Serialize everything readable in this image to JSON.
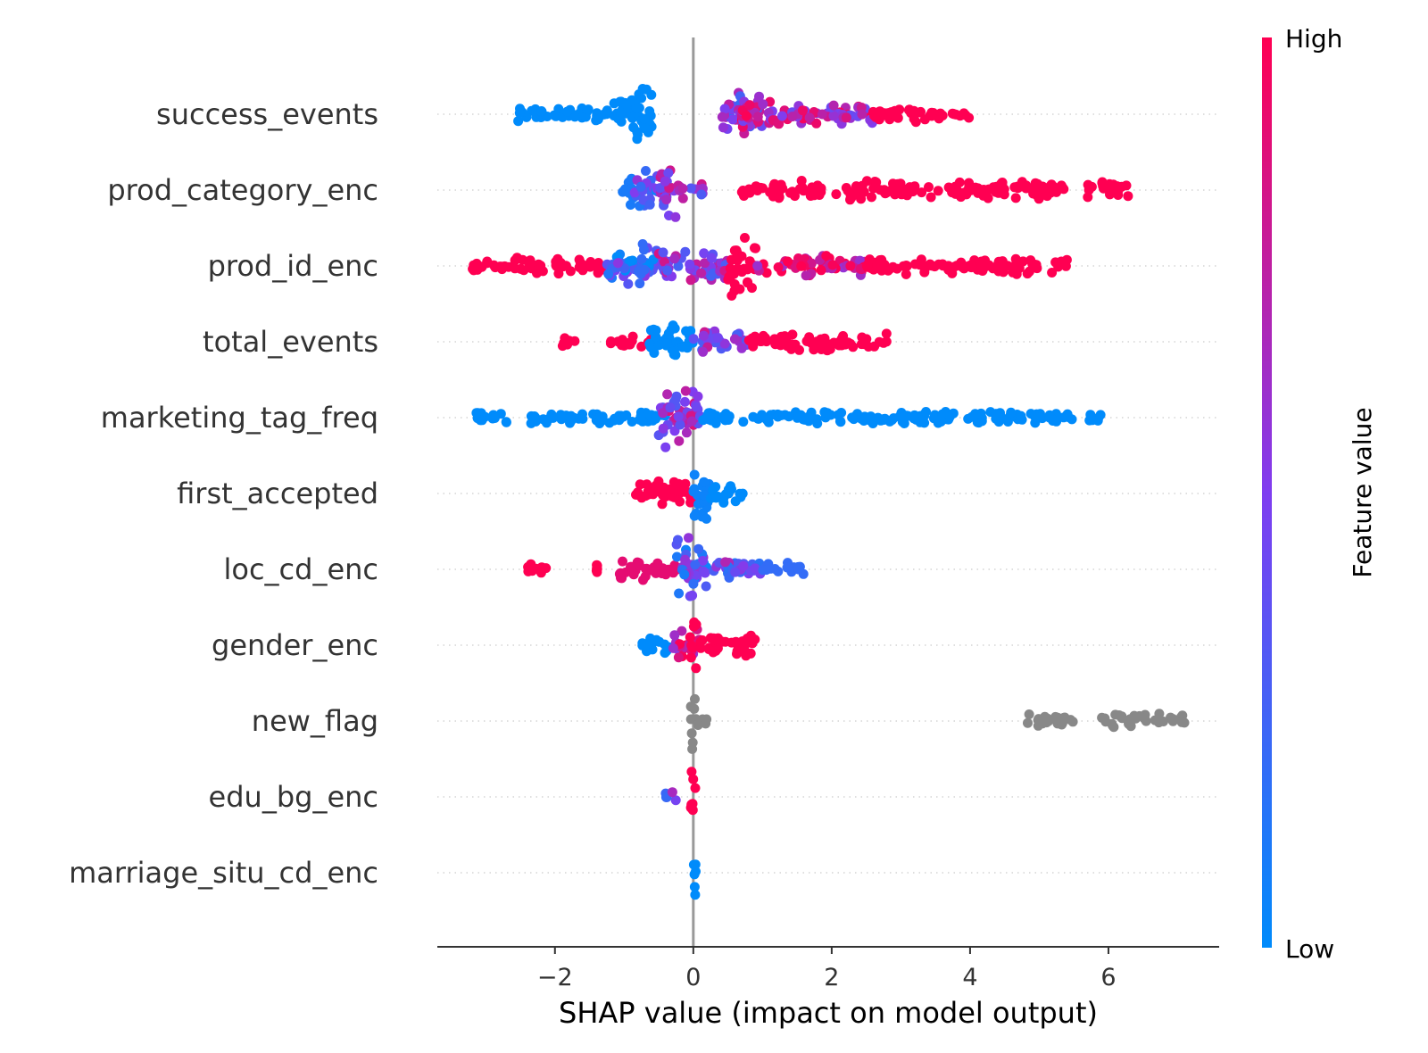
{
  "chart_data": {
    "type": "scatter",
    "subtype": "shap-beeswarm",
    "xlabel": "SHAP value (impact on model output)",
    "xlim": [
      -3.7,
      7.6
    ],
    "xticks": [
      -2,
      0,
      2,
      4,
      6
    ],
    "xtick_labels": [
      "−2",
      "0",
      "2",
      "4",
      "6"
    ],
    "zero_line": 0,
    "colorbar": {
      "title": "Feature value",
      "high_label": "High",
      "low_label": "Low",
      "high_color": "#ff0052",
      "mid_color": "#7f3df0",
      "low_color": "#008bfb"
    },
    "missing_color": "#888888",
    "features": [
      {
        "name": "success_events",
        "groups": [
          {
            "x": [
              -2.6,
              -2.2
            ],
            "color": 0.0,
            "w": 0.25
          },
          {
            "x": [
              -2.2,
              -1.2
            ],
            "color": 0.0,
            "w": 0.18
          },
          {
            "x": [
              -1.2,
              -0.75
            ],
            "color": 0.0,
            "w": 0.45
          },
          {
            "x": [
              -0.9,
              -0.6
            ],
            "color": 0.0,
            "w": 1.0
          },
          {
            "x": [
              0.4,
              1.0
            ],
            "color": 0.5,
            "w": 0.7
          },
          {
            "x": [
              0.7,
              1.2
            ],
            "color": 0.75,
            "w": 0.55
          },
          {
            "x": [
              1.2,
              2.6
            ],
            "color": 0.7,
            "w": 0.3
          },
          {
            "x": [
              2.6,
              3.4
            ],
            "color": 1.0,
            "w": 0.2
          },
          {
            "x": [
              3.4,
              4.0
            ],
            "color": 1.0,
            "w": 0.05
          }
        ]
      },
      {
        "name": "prod_category_enc",
        "groups": [
          {
            "x": [
              -1.05,
              -0.85
            ],
            "color": 0.1,
            "w": 0.5
          },
          {
            "x": [
              -0.85,
              -0.5
            ],
            "color": 0.3,
            "w": 0.7
          },
          {
            "x": [
              -0.5,
              -0.25
            ],
            "color": 0.6,
            "w": 1.0
          },
          {
            "x": [
              -0.25,
              0.15
            ],
            "color": 0.6,
            "w": 0.2
          },
          {
            "x": [
              0.7,
              1.1
            ],
            "color": 1.0,
            "w": 0.15
          },
          {
            "x": [
              1.1,
              5.4
            ],
            "color": 1.0,
            "w": 0.22
          },
          {
            "x": [
              5.7,
              6.3
            ],
            "color": 1.0,
            "w": 0.2
          }
        ]
      },
      {
        "name": "prod_id_enc",
        "groups": [
          {
            "x": [
              -3.2,
              -2.6
            ],
            "color": 1.0,
            "w": 0.12
          },
          {
            "x": [
              -2.6,
              -1.3
            ],
            "color": 1.0,
            "w": 0.2
          },
          {
            "x": [
              -1.3,
              -0.5
            ],
            "color": 0.25,
            "w": 0.55
          },
          {
            "x": [
              -0.8,
              -0.7
            ],
            "color": 0.2,
            "w": 1.0
          },
          {
            "x": [
              -0.5,
              0.5
            ],
            "color": 0.55,
            "w": 0.45
          },
          {
            "x": [
              0.5,
              0.9
            ],
            "color": 1.0,
            "w": 1.0
          },
          {
            "x": [
              0.9,
              2.5
            ],
            "color": 0.85,
            "w": 0.25
          },
          {
            "x": [
              2.5,
              5.4
            ],
            "color": 1.0,
            "w": 0.2
          }
        ]
      },
      {
        "name": "total_events",
        "groups": [
          {
            "x": [
              -1.9,
              -1.7
            ],
            "color": 1.0,
            "w": 0.1
          },
          {
            "x": [
              -1.2,
              -0.6
            ],
            "color": 1.0,
            "w": 0.15
          },
          {
            "x": [
              -0.65,
              0.0
            ],
            "color": 0.0,
            "w": 0.35
          },
          {
            "x": [
              -0.4,
              -0.25
            ],
            "color": 0.0,
            "w": 1.0
          },
          {
            "x": [
              0.0,
              0.8
            ],
            "color": 0.5,
            "w": 0.3
          },
          {
            "x": [
              0.8,
              2.8
            ],
            "color": 1.0,
            "w": 0.2
          }
        ]
      },
      {
        "name": "marketing_tag_freq",
        "groups": [
          {
            "x": [
              -3.2,
              -2.7
            ],
            "color": 0.0,
            "w": 0.1
          },
          {
            "x": [
              -2.4,
              -0.4
            ],
            "color": 0.0,
            "w": 0.12
          },
          {
            "x": [
              -0.5,
              0.1
            ],
            "color": 0.6,
            "w": 1.0
          },
          {
            "x": [
              0.1,
              5.0
            ],
            "color": 0.0,
            "w": 0.12
          },
          {
            "x": [
              5.0,
              5.5
            ],
            "color": 0.0,
            "w": 0.1
          },
          {
            "x": [
              5.7,
              5.9
            ],
            "color": 0.0,
            "w": 0.1
          }
        ]
      },
      {
        "name": "first_accepted",
        "groups": [
          {
            "x": [
              -0.85,
              -0.3
            ],
            "color": 1.0,
            "w": 0.35
          },
          {
            "x": [
              -0.3,
              0.0
            ],
            "color": 1.0,
            "w": 0.55
          },
          {
            "x": [
              0.0,
              0.25
            ],
            "color": 0.05,
            "w": 1.0
          },
          {
            "x": [
              0.25,
              0.75
            ],
            "color": 0.0,
            "w": 0.25
          }
        ]
      },
      {
        "name": "loc_cd_enc",
        "groups": [
          {
            "x": [
              -2.4,
              -2.1
            ],
            "color": 1.0,
            "w": 0.1
          },
          {
            "x": [
              -1.4,
              -1.4
            ],
            "color": 1.0,
            "w": 0.08
          },
          {
            "x": [
              -1.1,
              -0.2
            ],
            "color": 0.9,
            "w": 0.3
          },
          {
            "x": [
              -0.25,
              0.2
            ],
            "color": 0.3,
            "w": 1.0
          },
          {
            "x": [
              0.2,
              1.0
            ],
            "color": 0.4,
            "w": 0.25
          },
          {
            "x": [
              1.0,
              1.6
            ],
            "color": 0.2,
            "w": 0.12
          }
        ]
      },
      {
        "name": "gender_enc",
        "groups": [
          {
            "x": [
              -0.75,
              -0.25
            ],
            "color": 0.0,
            "w": 0.25
          },
          {
            "x": [
              -0.3,
              0.1
            ],
            "color": 0.8,
            "w": 0.45
          },
          {
            "x": [
              -0.05,
              0.05
            ],
            "color": 1.0,
            "w": 1.0
          },
          {
            "x": [
              0.1,
              0.9
            ],
            "color": 1.0,
            "w": 0.3
          }
        ]
      },
      {
        "name": "new_flag",
        "groups": [
          {
            "x": [
              -0.05,
              0.05
            ],
            "color": null,
            "w": 1.0
          },
          {
            "x": [
              0.05,
              0.2
            ],
            "color": null,
            "w": 0.2
          },
          {
            "x": [
              4.8,
              5.5
            ],
            "color": null,
            "w": 0.12
          },
          {
            "x": [
              5.9,
              7.1
            ],
            "color": null,
            "w": 0.15
          }
        ]
      },
      {
        "name": "edu_bg_enc",
        "groups": [
          {
            "x": [
              -0.4,
              -0.25
            ],
            "color": 0.45,
            "w": 0.2
          },
          {
            "x": [
              -0.04,
              0.04
            ],
            "color": 1.0,
            "w": 1.0
          }
        ]
      },
      {
        "name": "marriage_situ_cd_enc",
        "groups": [
          {
            "x": [
              -0.04,
              0.04
            ],
            "color": 0.0,
            "w": 0.9
          }
        ]
      }
    ]
  }
}
